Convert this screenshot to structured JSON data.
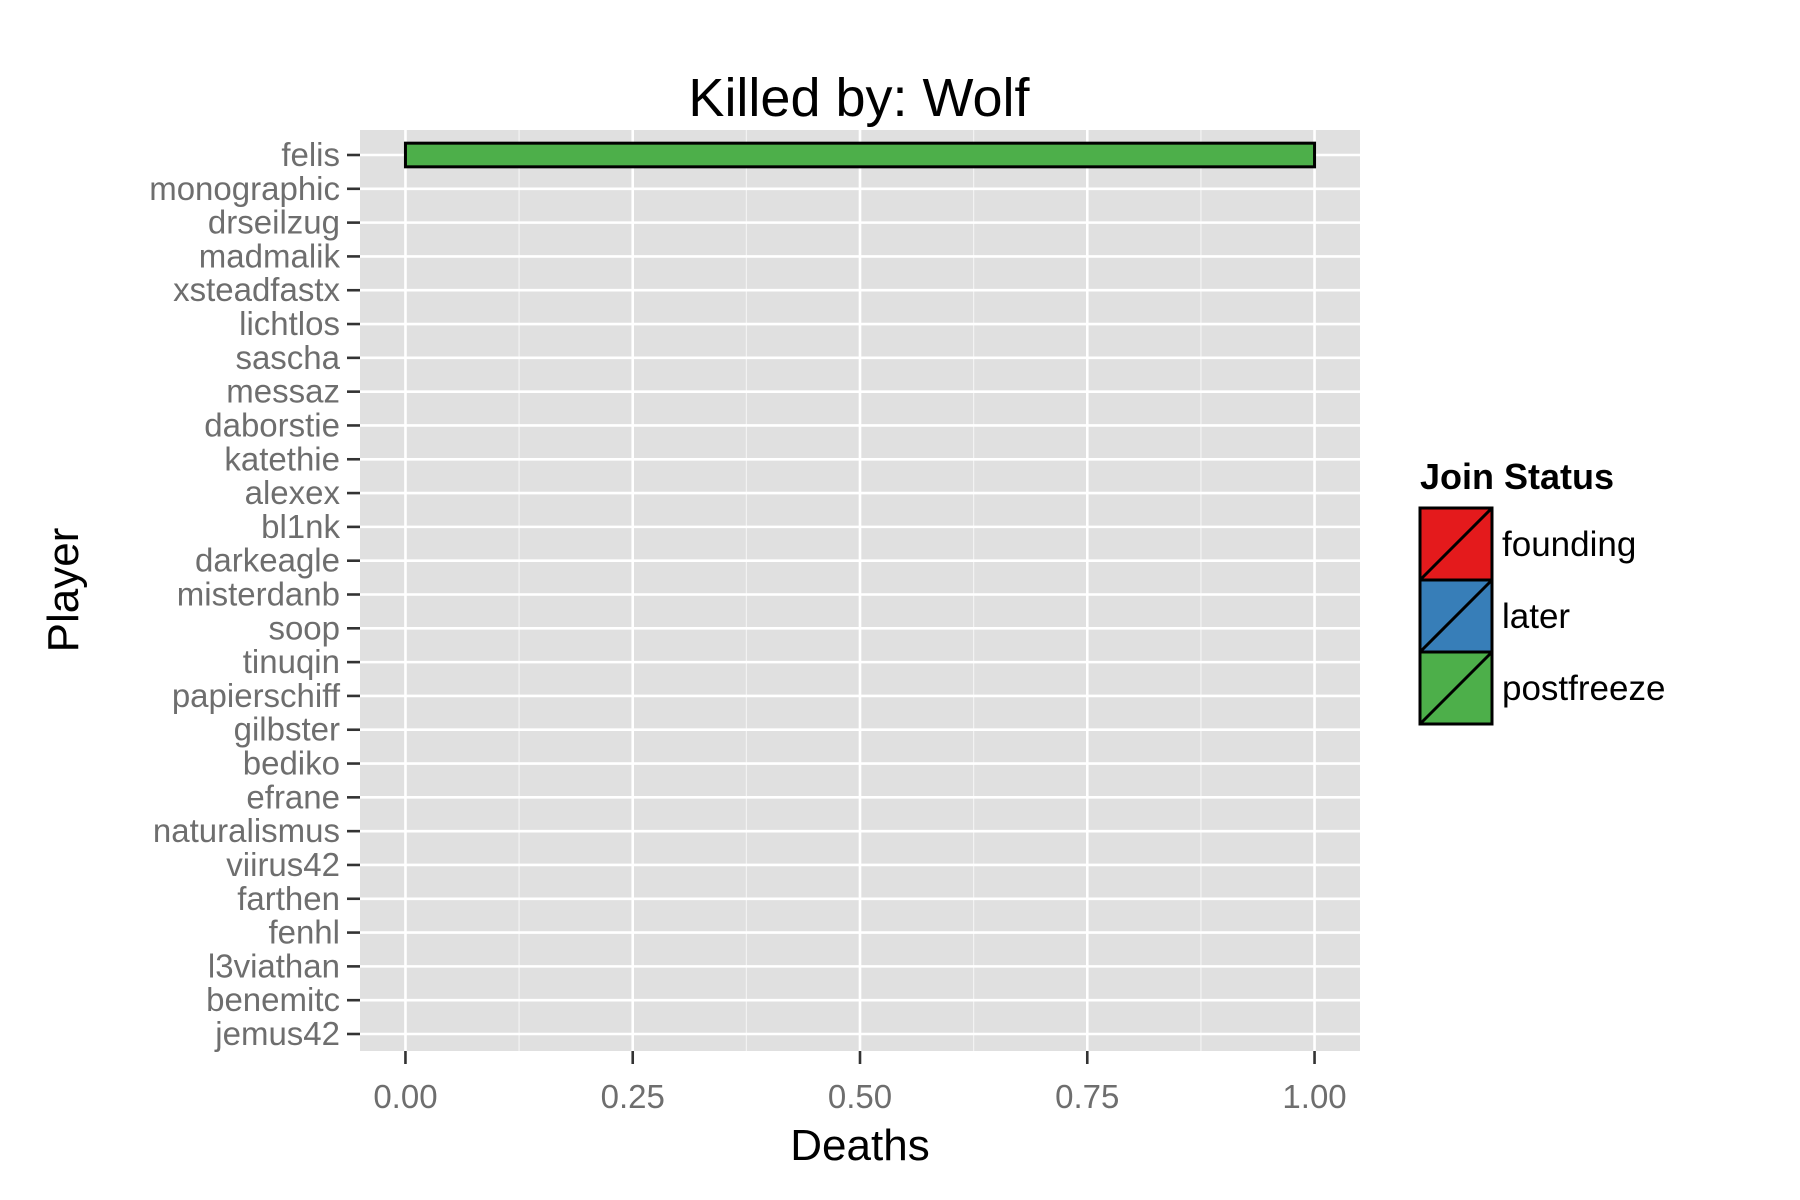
{
  "chart_data": {
    "type": "bar",
    "orientation": "horizontal",
    "title": "Killed by: Wolf",
    "xlabel": "Deaths",
    "ylabel": "Player",
    "xlim": [
      -0.05,
      1.05
    ],
    "xticks": [
      0,
      0.25,
      0.5,
      0.75,
      1
    ],
    "xtick_labels": [
      "0.00",
      "0.25",
      "0.50",
      "0.75",
      "1.00"
    ],
    "grid": true,
    "legend": {
      "title": "Join Status",
      "position": "right",
      "entries": [
        {
          "label": "founding",
          "color": "#e41a1c"
        },
        {
          "label": "later",
          "color": "#377eb8"
        },
        {
          "label": "postfreeze",
          "color": "#4daf4a"
        }
      ]
    },
    "categories": [
      "felis",
      "monographic",
      "drseilzug",
      "madmalik",
      "xsteadfastx",
      "lichtlos",
      "sascha",
      "messaz",
      "daborstie",
      "katethie",
      "alexex",
      "bl1nk",
      "darkeagle",
      "misterdanb",
      "soop",
      "tinuqin",
      "papierschiff",
      "gilbster",
      "bediko",
      "efrane",
      "naturalismus",
      "viirus42",
      "farthen",
      "fenhl",
      "l3viathan",
      "benemitc",
      "jemus42"
    ],
    "values": [
      1,
      0,
      0,
      0,
      0,
      0,
      0,
      0,
      0,
      0,
      0,
      0,
      0,
      0,
      0,
      0,
      0,
      0,
      0,
      0,
      0,
      0,
      0,
      0,
      0,
      0,
      0
    ],
    "group": [
      "postfreeze",
      "postfreeze",
      "postfreeze",
      "postfreeze",
      "postfreeze",
      "postfreeze",
      "postfreeze",
      "postfreeze",
      "postfreeze",
      "postfreeze",
      "postfreeze",
      "postfreeze",
      "postfreeze",
      "postfreeze",
      "postfreeze",
      "postfreeze",
      "postfreeze",
      "postfreeze",
      "postfreeze",
      "postfreeze",
      "postfreeze",
      "postfreeze",
      "postfreeze",
      "postfreeze",
      "postfreeze",
      "postfreeze",
      "postfreeze"
    ],
    "colors": {
      "panel_background": "#e0e0e0",
      "grid": "#ffffff",
      "bar_outline": "#000000"
    }
  }
}
